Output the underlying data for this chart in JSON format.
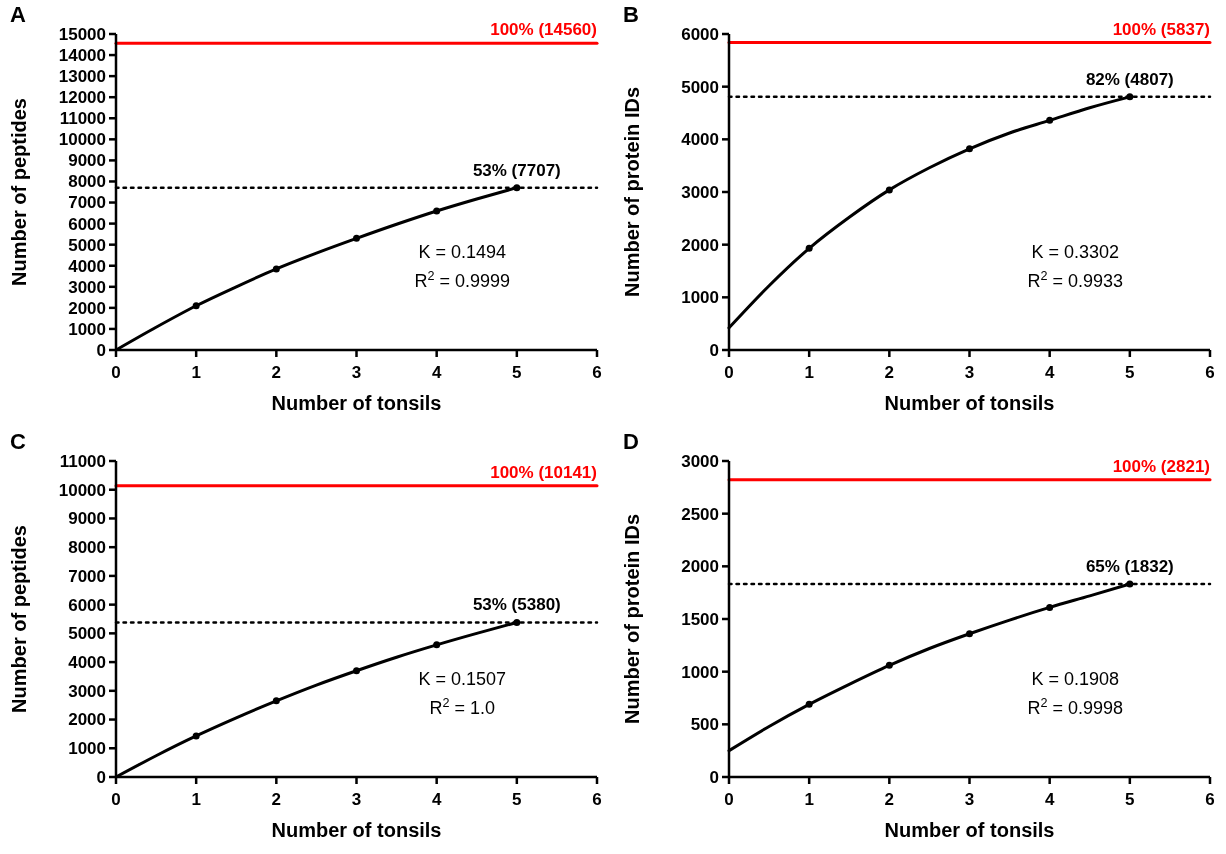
{
  "chart_data": [
    {
      "type": "line",
      "annotations": [
        "A",
        "K = 0.1494",
        "R$^{2}$ = 0.9999"
      ],
      "xlabel": "Number of tonsils",
      "ylabel": "Number of peptides",
      "xlim": [
        0,
        6
      ],
      "xticks": [
        0,
        1,
        2,
        3,
        4,
        5,
        6
      ],
      "ylim": [
        0,
        15000
      ],
      "yticks": [
        0,
        1000,
        2000,
        3000,
        4000,
        5000,
        6000,
        7000,
        8000,
        9000,
        10000,
        11000,
        12000,
        13000,
        14000,
        15000
      ],
      "grid": false,
      "series": [
        {
          "type": "line",
          "color": "#000000",
          "marker": "none",
          "x": [
            0,
            0.5,
            1,
            1.5,
            2,
            2.5,
            3,
            3.5,
            4,
            4.5,
            5
          ],
          "values": [
            0,
            1080,
            2100,
            3000,
            3850,
            4600,
            5300,
            5970,
            6600,
            7170,
            7707
          ]
        },
        {
          "type": "scatter",
          "color": "#000000",
          "marker": "circle",
          "x": [
            1,
            2,
            3,
            4,
            5
          ],
          "values": [
            2100,
            3850,
            5300,
            6600,
            7707
          ]
        }
      ],
      "ref_lines": [
        {
          "axis": "y",
          "value": 14560,
          "label": "100% (14560)",
          "color": "#ff0000",
          "line_style": "solid"
        },
        {
          "axis": "y",
          "value": 7707,
          "label": "53% (7707)",
          "color": "#000000",
          "line_style": "dotted"
        }
      ]
    },
    {
      "type": "line",
      "annotations": [
        "B",
        "K = 0.3302",
        "R$^{2}$ = 0.9933"
      ],
      "xlabel": "Number of tonsils",
      "ylabel": "Number of protein IDs",
      "xlim": [
        0,
        6
      ],
      "xticks": [
        0,
        1,
        2,
        3,
        4,
        5,
        6
      ],
      "ylim": [
        0,
        6000
      ],
      "yticks": [
        0,
        1000,
        2000,
        3000,
        4000,
        5000,
        6000
      ],
      "grid": false,
      "series": [
        {
          "type": "line",
          "color": "#000000",
          "marker": "none",
          "x": [
            0,
            0.5,
            1,
            1.5,
            2,
            2.5,
            3,
            3.5,
            4,
            4.5,
            5
          ],
          "values": [
            420,
            1220,
            1930,
            2520,
            3040,
            3460,
            3820,
            4120,
            4360,
            4600,
            4807
          ]
        },
        {
          "type": "scatter",
          "color": "#000000",
          "marker": "circle",
          "x": [
            1,
            2,
            3,
            4,
            5
          ],
          "values": [
            1930,
            3040,
            3820,
            4360,
            4807
          ]
        }
      ],
      "ref_lines": [
        {
          "axis": "y",
          "value": 5837,
          "label": "100% (5837)",
          "color": "#ff0000",
          "line_style": "solid"
        },
        {
          "axis": "y",
          "value": 4807,
          "label": "82% (4807)",
          "color": "#000000",
          "line_style": "dotted"
        }
      ]
    },
    {
      "type": "line",
      "annotations": [
        "C",
        "K = 0.1507",
        "R$^{2}$ = 1.0"
      ],
      "xlabel": "Number of tonsils",
      "ylabel": "Number of peptides",
      "xlim": [
        0,
        6
      ],
      "xticks": [
        0,
        1,
        2,
        3,
        4,
        5,
        6
      ],
      "ylim": [
        0,
        11000
      ],
      "yticks": [
        0,
        1000,
        2000,
        3000,
        4000,
        5000,
        6000,
        7000,
        8000,
        9000,
        10000,
        11000
      ],
      "grid": false,
      "series": [
        {
          "type": "line",
          "color": "#000000",
          "marker": "none",
          "x": [
            0,
            0.5,
            1,
            1.5,
            2,
            2.5,
            3,
            3.5,
            4,
            4.5,
            5
          ],
          "values": [
            0,
            740,
            1430,
            2060,
            2650,
            3200,
            3700,
            4170,
            4600,
            5000,
            5380
          ]
        },
        {
          "type": "scatter",
          "color": "#000000",
          "marker": "circle",
          "x": [
            1,
            2,
            3,
            4,
            5
          ],
          "values": [
            1430,
            2650,
            3700,
            4600,
            5380
          ]
        }
      ],
      "ref_lines": [
        {
          "axis": "y",
          "value": 10141,
          "label": "100% (10141)",
          "color": "#ff0000",
          "line_style": "solid"
        },
        {
          "axis": "y",
          "value": 5380,
          "label": "53% (5380)",
          "color": "#000000",
          "line_style": "dotted"
        }
      ]
    },
    {
      "type": "line",
      "annotations": [
        "D",
        "K = 0.1908",
        "R$^{2}$ = 0.9998"
      ],
      "xlabel": "Number of tonsils",
      "ylabel": "Number of protein IDs",
      "xlim": [
        0,
        6
      ],
      "xticks": [
        0,
        1,
        2,
        3,
        4,
        5,
        6
      ],
      "ylim": [
        0,
        3000
      ],
      "yticks": [
        0,
        500,
        1000,
        1500,
        2000,
        2500,
        3000
      ],
      "grid": false,
      "series": [
        {
          "type": "line",
          "color": "#000000",
          "marker": "none",
          "x": [
            0,
            0.5,
            1,
            1.5,
            2,
            2.5,
            3,
            3.5,
            4,
            4.5,
            5
          ],
          "values": [
            250,
            480,
            690,
            880,
            1060,
            1220,
            1360,
            1490,
            1610,
            1720,
            1832
          ]
        },
        {
          "type": "scatter",
          "color": "#000000",
          "marker": "circle",
          "x": [
            1,
            2,
            3,
            4,
            5
          ],
          "values": [
            690,
            1060,
            1360,
            1610,
            1832
          ]
        }
      ],
      "ref_lines": [
        {
          "axis": "y",
          "value": 2821,
          "label": "100% (2821)",
          "color": "#ff0000",
          "line_style": "solid"
        },
        {
          "axis": "y",
          "value": 1832,
          "label": "65% (1832)",
          "color": "#000000",
          "line_style": "dotted"
        }
      ]
    }
  ]
}
